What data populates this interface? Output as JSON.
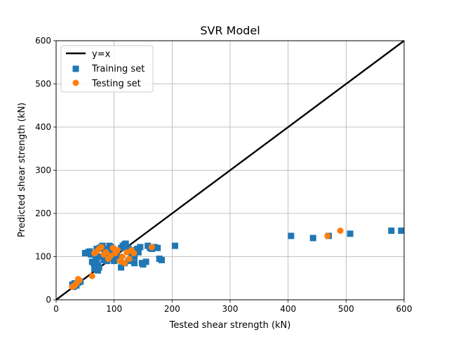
{
  "chart_data": {
    "type": "scatter",
    "title": "SVR Model",
    "xlabel": "Tested shear strength (kN)",
    "ylabel": "Predicted shear strength (kN)",
    "xlim": [
      0,
      600
    ],
    "ylim": [
      0,
      600
    ],
    "xticks": [
      0,
      100,
      200,
      300,
      400,
      500,
      600
    ],
    "yticks": [
      0,
      100,
      200,
      300,
      400,
      500,
      600
    ],
    "grid": true,
    "legend_position": "top-left",
    "reference_line": {
      "name": "y=x",
      "x": [
        0,
        600
      ],
      "y": [
        0,
        600
      ],
      "color": "#000000"
    },
    "series": [
      {
        "name": "Training set",
        "marker": "square",
        "color": "#1f77b4",
        "points": [
          [
            28,
            35
          ],
          [
            32,
            38
          ],
          [
            35,
            33
          ],
          [
            38,
            40
          ],
          [
            30,
            30
          ],
          [
            42,
            42
          ],
          [
            50,
            108
          ],
          [
            55,
            110
          ],
          [
            58,
            112
          ],
          [
            60,
            105
          ],
          [
            62,
            88
          ],
          [
            65,
            85
          ],
          [
            68,
            90
          ],
          [
            70,
            95
          ],
          [
            72,
            80
          ],
          [
            74,
            75
          ],
          [
            70,
            118
          ],
          [
            75,
            120
          ],
          [
            78,
            122
          ],
          [
            80,
            125
          ],
          [
            82,
            118
          ],
          [
            85,
            115
          ],
          [
            88,
            110
          ],
          [
            90,
            108
          ],
          [
            92,
            105
          ],
          [
            95,
            100
          ],
          [
            97,
            95
          ],
          [
            100,
            90
          ],
          [
            92,
            125
          ],
          [
            95,
            122
          ],
          [
            98,
            118
          ],
          [
            100,
            112
          ],
          [
            103,
            108
          ],
          [
            105,
            102
          ],
          [
            108,
            98
          ],
          [
            110,
            95
          ],
          [
            112,
            120
          ],
          [
            115,
            125
          ],
          [
            118,
            128
          ],
          [
            120,
            130
          ],
          [
            122,
            122
          ],
          [
            125,
            118
          ],
          [
            128,
            112
          ],
          [
            130,
            108
          ],
          [
            132,
            105
          ],
          [
            135,
            100
          ],
          [
            138,
            115
          ],
          [
            140,
            118
          ],
          [
            142,
            110
          ],
          [
            145,
            122
          ],
          [
            148,
            85
          ],
          [
            150,
            82
          ],
          [
            155,
            88
          ],
          [
            158,
            125
          ],
          [
            162,
            120
          ],
          [
            165,
            118
          ],
          [
            170,
            122
          ],
          [
            175,
            120
          ],
          [
            178,
            95
          ],
          [
            182,
            92
          ],
          [
            205,
            125
          ],
          [
            112,
            75
          ],
          [
            118,
            85
          ],
          [
            125,
            90
          ],
          [
            135,
            85
          ],
          [
            88,
            90
          ],
          [
            82,
            92
          ],
          [
            76,
            100
          ],
          [
            66,
            72
          ],
          [
            72,
            68
          ],
          [
            405,
            148
          ],
          [
            443,
            143
          ],
          [
            470,
            148
          ],
          [
            507,
            153
          ],
          [
            578,
            160
          ],
          [
            595,
            160
          ]
        ]
      },
      {
        "name": "Testing set",
        "marker": "circle",
        "color": "#ff7f0e",
        "points": [
          [
            28,
            30
          ],
          [
            32,
            33
          ],
          [
            35,
            38
          ],
          [
            38,
            48
          ],
          [
            40,
            45
          ],
          [
            62,
            55
          ],
          [
            66,
            108
          ],
          [
            70,
            112
          ],
          [
            74,
            118
          ],
          [
            78,
            122
          ],
          [
            82,
            105
          ],
          [
            86,
            110
          ],
          [
            90,
            95
          ],
          [
            94,
            102
          ],
          [
            98,
            120
          ],
          [
            102,
            108
          ],
          [
            106,
            115
          ],
          [
            110,
            90
          ],
          [
            114,
            100
          ],
          [
            118,
            85
          ],
          [
            122,
            110
          ],
          [
            126,
            95
          ],
          [
            130,
            115
          ],
          [
            134,
            108
          ],
          [
            165,
            122
          ],
          [
            468,
            148
          ],
          [
            490,
            160
          ]
        ]
      }
    ]
  }
}
